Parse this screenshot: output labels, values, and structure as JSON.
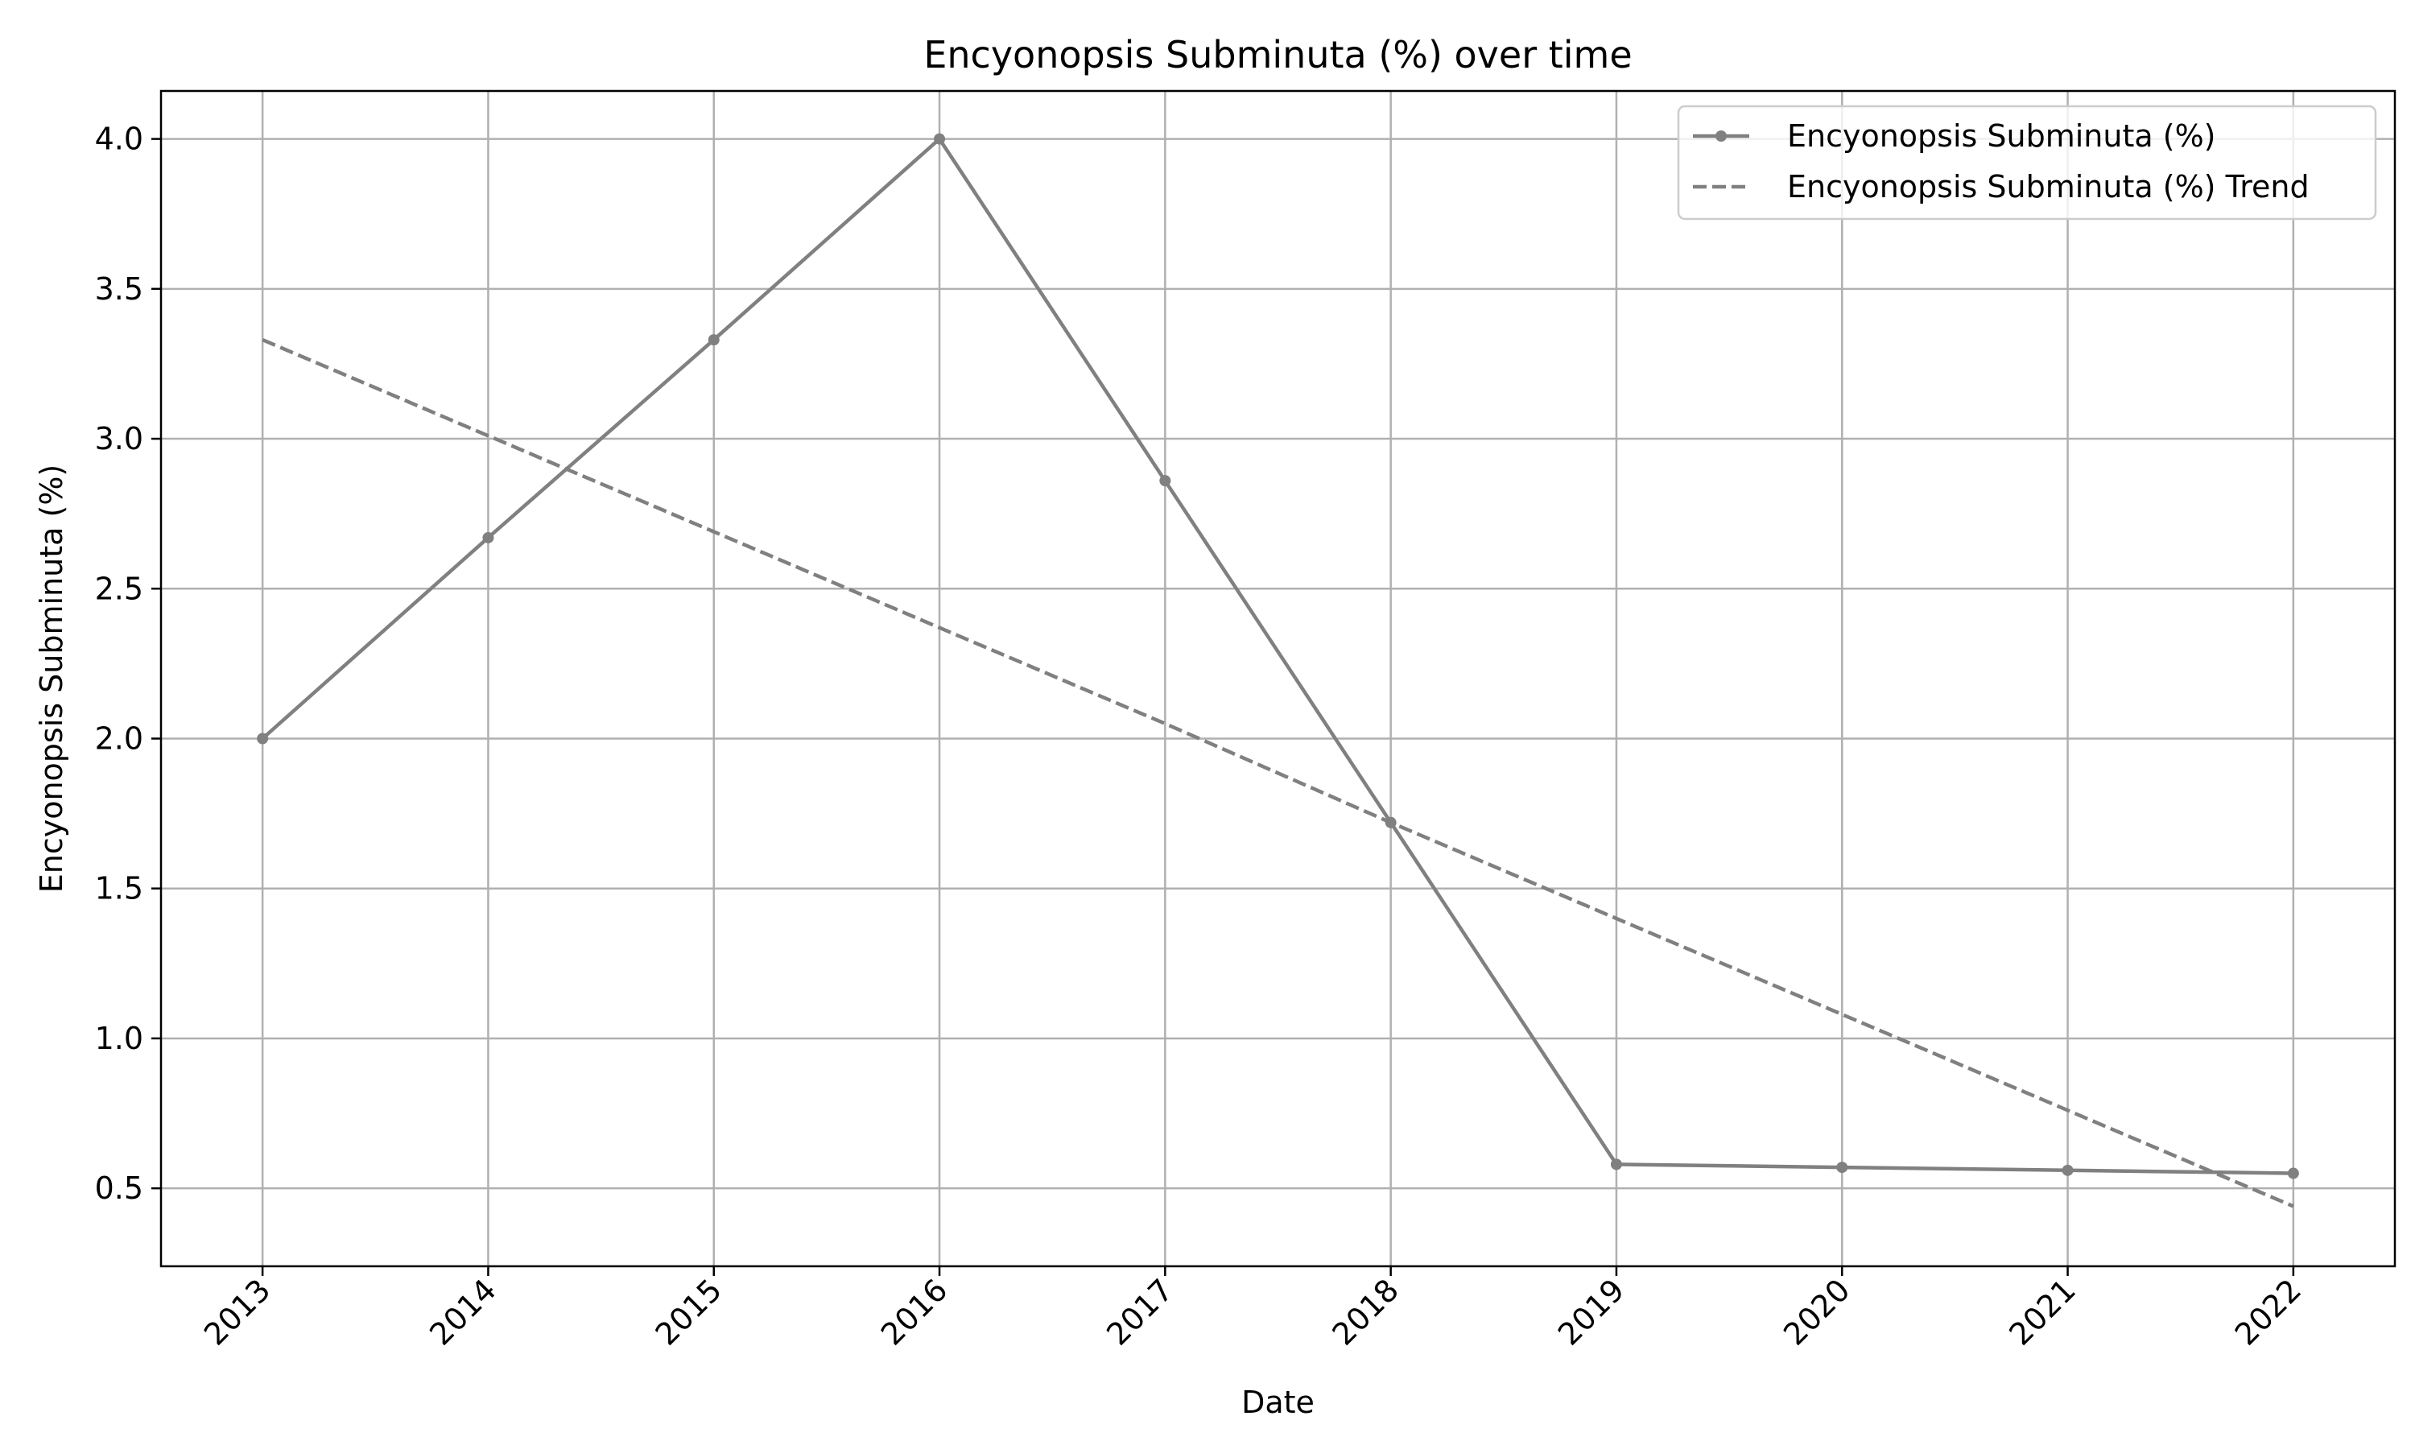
{
  "chart_data": {
    "type": "line",
    "title": "Encyonopsis Subminuta (%) over time",
    "xlabel": "Date",
    "ylabel": "Encyonopsis Subminuta (%)",
    "x": [
      "2013",
      "2014",
      "2015",
      "2016",
      "2017",
      "2018",
      "2019",
      "2020",
      "2021",
      "2022"
    ],
    "xlim": [
      2012.55,
      2022.45
    ],
    "ylim": [
      0.24,
      4.16
    ],
    "yticks": [
      0.5,
      1.0,
      1.5,
      2.0,
      2.5,
      3.0,
      3.5,
      4.0
    ],
    "ytick_labels": [
      "0.5",
      "1.0",
      "1.5",
      "2.0",
      "2.5",
      "3.0",
      "3.5",
      "4.0"
    ],
    "grid": true,
    "legend_position": "top-right",
    "series": [
      {
        "name": "Encyonopsis Subminuta (%)",
        "style": "solid-with-markers",
        "color": "#808080",
        "values": [
          2.0,
          2.67,
          3.33,
          4.0,
          2.86,
          1.72,
          0.58,
          0.57,
          0.56,
          0.55
        ]
      },
      {
        "name": "Encyonopsis Subminuta (%) Trend",
        "style": "dashed",
        "color": "#808080",
        "values": [
          3.33,
          3.01,
          2.69,
          2.37,
          2.05,
          1.72,
          1.4,
          1.08,
          0.76,
          0.44
        ]
      }
    ]
  }
}
